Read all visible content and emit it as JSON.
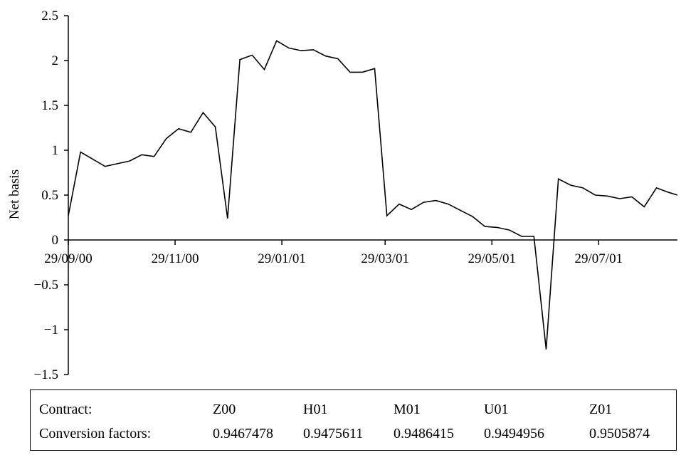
{
  "chart_data": {
    "type": "line",
    "title": "",
    "xlabel": "",
    "ylabel": "Net basis",
    "ylim": [
      -1.5,
      2.5
    ],
    "yticks": [
      -1.5,
      -1,
      -0.5,
      0,
      0.5,
      1,
      1.5,
      2,
      2.5
    ],
    "ytick_labels": [
      "−1.5",
      "−1",
      "−0.5",
      "0",
      "0.5",
      "1",
      "1.5",
      "2",
      "2.5"
    ],
    "xlim": [
      "2000-09-29",
      "2001-09-12"
    ],
    "xticks": [
      "2000-09-29",
      "2000-11-29",
      "2001-01-29",
      "2001-03-29",
      "2001-05-29",
      "2001-07-29"
    ],
    "xtick_labels": [
      "29/09/00",
      "29/11/00",
      "29/01/01",
      "29/03/01",
      "29/05/01",
      "29/07/01"
    ],
    "grid": false,
    "legend": "none",
    "line_color": "#000000",
    "series": [
      {
        "x": [
          "2000-09-29",
          "2000-10-06",
          "2000-10-13",
          "2000-10-20",
          "2000-10-27",
          "2000-11-03",
          "2000-11-10",
          "2000-11-17",
          "2000-11-24",
          "2000-12-01",
          "2000-12-08",
          "2000-12-15",
          "2000-12-22",
          "2000-12-29",
          "2001-01-05",
          "2001-01-12",
          "2001-01-19",
          "2001-01-26",
          "2001-02-02",
          "2001-02-09",
          "2001-02-16",
          "2001-02-23",
          "2001-03-02",
          "2001-03-09",
          "2001-03-16",
          "2001-03-23",
          "2001-03-30",
          "2001-04-06",
          "2001-04-13",
          "2001-04-20",
          "2001-04-27",
          "2001-05-04",
          "2001-05-11",
          "2001-05-18",
          "2001-05-25",
          "2001-06-01",
          "2001-06-08",
          "2001-06-15",
          "2001-06-22",
          "2001-06-29",
          "2001-07-06",
          "2001-07-13",
          "2001-07-20",
          "2001-07-27",
          "2001-08-03",
          "2001-08-10",
          "2001-08-17",
          "2001-08-24",
          "2001-08-31",
          "2001-09-07",
          "2001-09-12"
        ],
        "values": [
          0.27,
          0.98,
          0.9,
          0.82,
          0.85,
          0.88,
          0.95,
          0.93,
          1.13,
          1.24,
          1.2,
          1.42,
          1.26,
          0.24,
          2.01,
          2.06,
          1.9,
          2.22,
          2.14,
          2.11,
          2.12,
          2.05,
          2.02,
          1.87,
          1.87,
          1.91,
          0.27,
          0.4,
          0.34,
          0.42,
          0.44,
          0.4,
          0.33,
          0.26,
          0.15,
          0.14,
          0.11,
          0.04,
          0.04,
          -1.22,
          0.68,
          0.61,
          0.58,
          0.5,
          0.49,
          0.46,
          0.48,
          0.37,
          0.58,
          0.53,
          0.5
        ]
      }
    ]
  },
  "conversion_table": {
    "contract_label": "Contract:",
    "factor_label": "Conversion factors:",
    "columns": [
      {
        "contract": "Z00",
        "factor": "0.9467478"
      },
      {
        "contract": "H01",
        "factor": "0.9475611"
      },
      {
        "contract": "M01",
        "factor": "0.9486415"
      },
      {
        "contract": "U01",
        "factor": "0.9494956"
      },
      {
        "contract": "Z01",
        "factor": "0.9505874"
      }
    ]
  }
}
